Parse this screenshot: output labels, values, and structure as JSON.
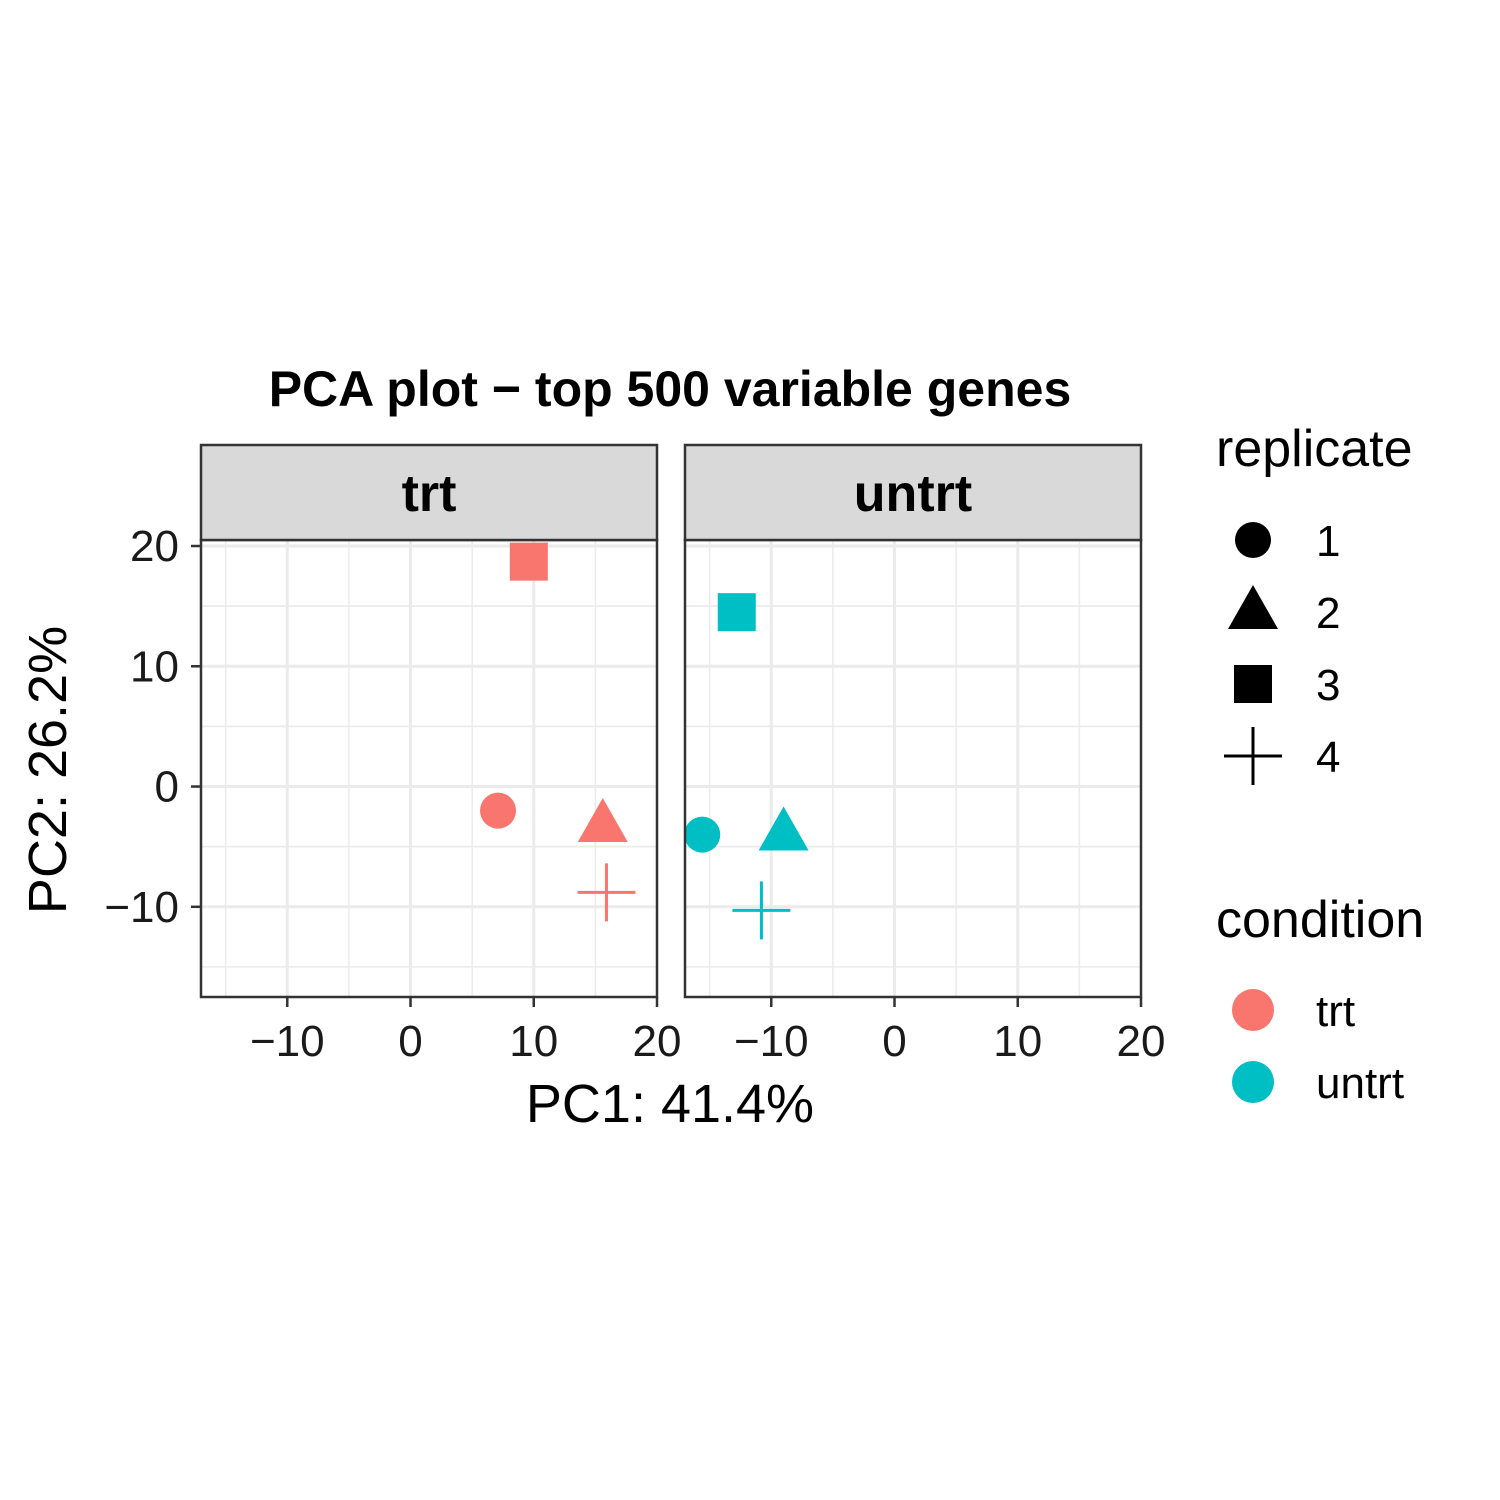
{
  "chart_data": {
    "type": "scatter",
    "title": "PCA plot − top 500 variable genes",
    "xlabel": "PC1: 41.4%",
    "ylabel": "PC2: 26.2%",
    "xlim": [
      -17,
      20
    ],
    "ylim": [
      -17.5,
      20.5
    ],
    "x_ticks": [
      -10,
      0,
      10,
      20
    ],
    "y_ticks": [
      20,
      10,
      0,
      -10
    ],
    "x_tick_labels": [
      "−10",
      "0",
      "10",
      "20"
    ],
    "y_tick_labels": [
      "20",
      "10",
      "0",
      "−10"
    ],
    "grid": true,
    "facets": [
      "trt",
      "untrt"
    ],
    "legend_position": "right",
    "legends": {
      "shape": {
        "title": "replicate",
        "items": [
          {
            "label": "1",
            "shape": "circle"
          },
          {
            "label": "2",
            "shape": "triangle"
          },
          {
            "label": "3",
            "shape": "square"
          },
          {
            "label": "4",
            "shape": "plus"
          }
        ]
      },
      "color": {
        "title": "condition",
        "items": [
          {
            "label": "trt",
            "color": "#F8766D"
          },
          {
            "label": "untrt",
            "color": "#00BFC4"
          }
        ]
      }
    },
    "points": [
      {
        "facet": "trt",
        "condition": "trt",
        "replicate": "1",
        "x": 7.1,
        "y": -2.0
      },
      {
        "facet": "trt",
        "condition": "trt",
        "replicate": "2",
        "x": 15.6,
        "y": -3.2
      },
      {
        "facet": "trt",
        "condition": "trt",
        "replicate": "3",
        "x": 9.6,
        "y": 18.7
      },
      {
        "facet": "trt",
        "condition": "trt",
        "replicate": "4",
        "x": 15.9,
        "y": -8.8
      },
      {
        "facet": "untrt",
        "condition": "untrt",
        "replicate": "1",
        "x": -15.6,
        "y": -4.0
      },
      {
        "facet": "untrt",
        "condition": "untrt",
        "replicate": "2",
        "x": -9.0,
        "y": -3.9
      },
      {
        "facet": "untrt",
        "condition": "untrt",
        "replicate": "3",
        "x": -12.8,
        "y": 14.5
      },
      {
        "facet": "untrt",
        "condition": "untrt",
        "replicate": "4",
        "x": -10.8,
        "y": -10.3
      }
    ]
  }
}
